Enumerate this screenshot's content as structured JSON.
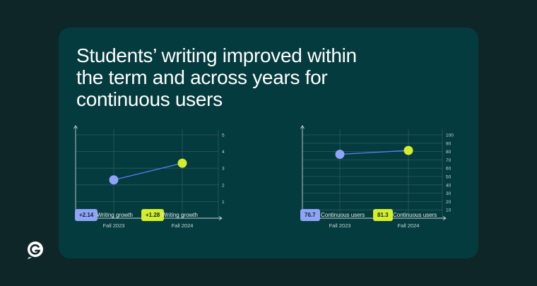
{
  "title": "Students’ writing improved within the term and across years for continuous users",
  "colors": {
    "background": "#0f2628",
    "card": "#043b3e",
    "series_fall2023": "#8fa3f7",
    "series_fall2024": "#d4ee2b",
    "line": "#5b7df5",
    "grid": "#2e5a5c",
    "axis": "#c8d6d6"
  },
  "legend": {
    "left": [
      {
        "value": "+2.14",
        "label": "Writing growth",
        "color": "#8fa3f7"
      },
      {
        "value": "+1.28",
        "label": "Writing growth",
        "color": "#d4ee2b"
      }
    ],
    "right": [
      {
        "value": "76.7",
        "label": "Continuous users",
        "color": "#8fa3f7"
      },
      {
        "value": "81.3",
        "label": "Continuous users",
        "color": "#d4ee2b"
      }
    ]
  },
  "logo_icon": "grammarly-g-icon",
  "chart_data": [
    {
      "type": "line",
      "categories": [
        "Fall 2023",
        "Fall 2024"
      ],
      "values": [
        2.3,
        3.3
      ],
      "yticks": [
        1,
        2,
        3,
        4,
        5
      ],
      "ylim": [
        0,
        5
      ],
      "grid": true,
      "point_colors": [
        "#8fa3f7",
        "#d4ee2b"
      ]
    },
    {
      "type": "line",
      "categories": [
        "Fall 2023",
        "Fall 2024"
      ],
      "values": [
        76.7,
        81.3
      ],
      "yticks": [
        10,
        20,
        30,
        40,
        50,
        60,
        70,
        80,
        90,
        100
      ],
      "ylim": [
        0,
        100
      ],
      "grid": true,
      "point_colors": [
        "#8fa3f7",
        "#d4ee2b"
      ]
    }
  ]
}
